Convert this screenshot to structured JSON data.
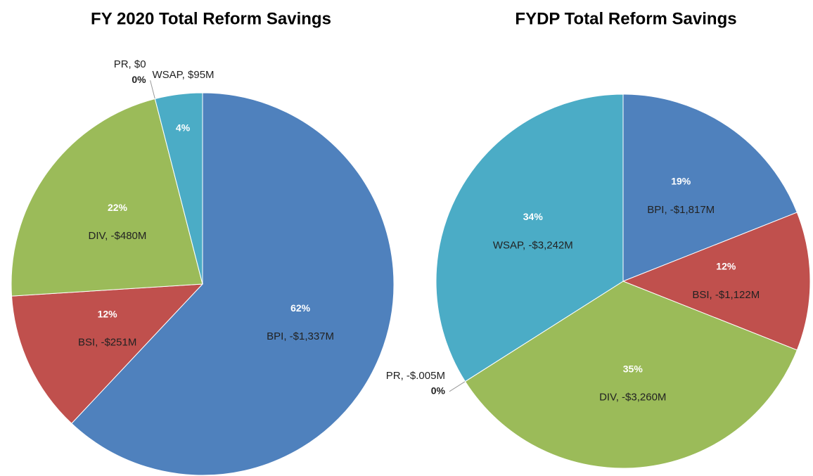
{
  "chart_data": [
    {
      "type": "pie",
      "title": "FY 2020 Total Reform Savings",
      "categories": [
        "BPI, -$1,337M",
        "BSI, -$251M",
        "DIV, -$480M",
        "PR, $0",
        "WSAP, $95M"
      ],
      "values": [
        62,
        12,
        22,
        0,
        4
      ],
      "value_labels": [
        "62%",
        "12%",
        "22%",
        "0%",
        "4%"
      ],
      "colors": [
        "#4f81bd",
        "#c0504d",
        "#9bbb59",
        "#8064a2",
        "#4bacc6"
      ]
    },
    {
      "type": "pie",
      "title": "FYDP Total Reform Savings",
      "categories": [
        "BPI, -$1,817M",
        "BSI, -$1,122M",
        "DIV, -$3,260M",
        "PR, -$.005M",
        "WSAP, -$3,242M"
      ],
      "values": [
        19,
        12,
        35,
        0,
        34
      ],
      "value_labels": [
        "19%",
        "12%",
        "35%",
        "0%",
        "34%"
      ],
      "colors": [
        "#4f81bd",
        "#c0504d",
        "#9bbb59",
        "#8064a2",
        "#4bacc6"
      ]
    }
  ]
}
